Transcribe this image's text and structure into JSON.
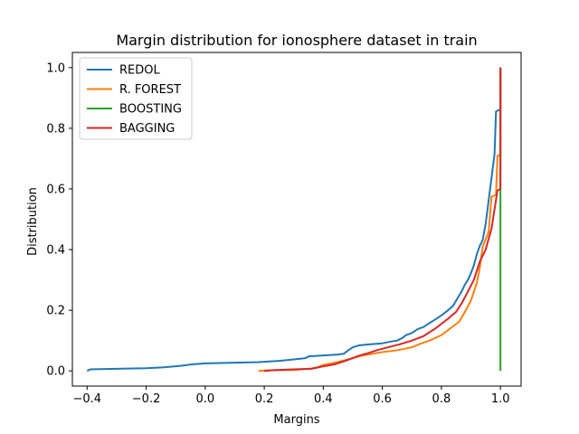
{
  "chart_data": {
    "type": "line",
    "title": "Margin distribution for ionosphere dataset in train",
    "xlabel": "Margins",
    "ylabel": "Distribution",
    "xlim": [
      -0.45,
      1.07
    ],
    "ylim": [
      -0.05,
      1.05
    ],
    "xticks": [
      -0.4,
      -0.2,
      0.0,
      0.2,
      0.4,
      0.6,
      0.8,
      1.0
    ],
    "xtick_labels": [
      "−0.4",
      "−0.2",
      "0.0",
      "0.2",
      "0.4",
      "0.6",
      "0.8",
      "1.0"
    ],
    "yticks": [
      0.0,
      0.2,
      0.4,
      0.6,
      0.8,
      1.0
    ],
    "ytick_labels": [
      "0.0",
      "0.2",
      "0.4",
      "0.6",
      "0.8",
      "1.0"
    ],
    "grid": false,
    "legend_position": "top-left",
    "series": [
      {
        "name": "REDOL",
        "color": "#1f77b4",
        "points": [
          [
            -0.4,
            0.0
          ],
          [
            -0.39,
            0.005
          ],
          [
            -0.3,
            0.007
          ],
          [
            -0.2,
            0.009
          ],
          [
            -0.14,
            0.012
          ],
          [
            -0.08,
            0.017
          ],
          [
            -0.05,
            0.021
          ],
          [
            0.0,
            0.025
          ],
          [
            0.1,
            0.027
          ],
          [
            0.18,
            0.029
          ],
          [
            0.25,
            0.033
          ],
          [
            0.3,
            0.038
          ],
          [
            0.34,
            0.042
          ],
          [
            0.35,
            0.048
          ],
          [
            0.4,
            0.051
          ],
          [
            0.45,
            0.054
          ],
          [
            0.47,
            0.057
          ],
          [
            0.48,
            0.065
          ],
          [
            0.5,
            0.078
          ],
          [
            0.52,
            0.084
          ],
          [
            0.55,
            0.087
          ],
          [
            0.6,
            0.091
          ],
          [
            0.63,
            0.097
          ],
          [
            0.65,
            0.1
          ],
          [
            0.67,
            0.11
          ],
          [
            0.68,
            0.118
          ],
          [
            0.7,
            0.125
          ],
          [
            0.72,
            0.138
          ],
          [
            0.74,
            0.145
          ],
          [
            0.76,
            0.158
          ],
          [
            0.78,
            0.17
          ],
          [
            0.8,
            0.183
          ],
          [
            0.82,
            0.198
          ],
          [
            0.84,
            0.215
          ],
          [
            0.85,
            0.232
          ],
          [
            0.86,
            0.248
          ],
          [
            0.87,
            0.265
          ],
          [
            0.88,
            0.285
          ],
          [
            0.89,
            0.3
          ],
          [
            0.9,
            0.322
          ],
          [
            0.91,
            0.348
          ],
          [
            0.92,
            0.385
          ],
          [
            0.93,
            0.412
          ],
          [
            0.94,
            0.432
          ],
          [
            0.95,
            0.485
          ],
          [
            0.96,
            0.562
          ],
          [
            0.97,
            0.638
          ],
          [
            0.98,
            0.715
          ],
          [
            0.985,
            0.855
          ],
          [
            0.99,
            0.858
          ],
          [
            1.0,
            0.862
          ],
          [
            1.0,
            1.0
          ]
        ]
      },
      {
        "name": "R. FOREST",
        "color": "#ff7f0e",
        "points": [
          [
            0.18,
            0.0
          ],
          [
            0.22,
            0.002
          ],
          [
            0.3,
            0.003
          ],
          [
            0.36,
            0.008
          ],
          [
            0.38,
            0.012
          ],
          [
            0.4,
            0.02
          ],
          [
            0.43,
            0.025
          ],
          [
            0.46,
            0.032
          ],
          [
            0.5,
            0.042
          ],
          [
            0.53,
            0.05
          ],
          [
            0.56,
            0.055
          ],
          [
            0.6,
            0.062
          ],
          [
            0.65,
            0.068
          ],
          [
            0.7,
            0.078
          ],
          [
            0.73,
            0.09
          ],
          [
            0.76,
            0.1
          ],
          [
            0.8,
            0.118
          ],
          [
            0.83,
            0.14
          ],
          [
            0.86,
            0.162
          ],
          [
            0.88,
            0.195
          ],
          [
            0.9,
            0.232
          ],
          [
            0.92,
            0.29
          ],
          [
            0.93,
            0.34
          ],
          [
            0.94,
            0.41
          ],
          [
            0.96,
            0.458
          ],
          [
            0.97,
            0.575
          ],
          [
            0.985,
            0.58
          ],
          [
            0.99,
            0.71
          ],
          [
            1.0,
            0.712
          ],
          [
            1.0,
            1.0
          ]
        ]
      },
      {
        "name": "BOOSTING",
        "color": "#2ca02c",
        "points": [
          [
            1.0,
            0.0
          ],
          [
            1.0,
            1.0
          ]
        ]
      },
      {
        "name": "BAGGING",
        "color": "#d62728",
        "points": [
          [
            0.2,
            0.0
          ],
          [
            0.24,
            0.003
          ],
          [
            0.3,
            0.005
          ],
          [
            0.36,
            0.007
          ],
          [
            0.4,
            0.015
          ],
          [
            0.44,
            0.022
          ],
          [
            0.48,
            0.035
          ],
          [
            0.52,
            0.05
          ],
          [
            0.55,
            0.058
          ],
          [
            0.58,
            0.068
          ],
          [
            0.62,
            0.078
          ],
          [
            0.66,
            0.088
          ],
          [
            0.7,
            0.1
          ],
          [
            0.74,
            0.115
          ],
          [
            0.78,
            0.14
          ],
          [
            0.82,
            0.17
          ],
          [
            0.85,
            0.195
          ],
          [
            0.87,
            0.225
          ],
          [
            0.89,
            0.262
          ],
          [
            0.91,
            0.3
          ],
          [
            0.93,
            0.36
          ],
          [
            0.95,
            0.4
          ],
          [
            0.97,
            0.47
          ],
          [
            0.99,
            0.595
          ],
          [
            1.0,
            0.6
          ],
          [
            1.0,
            1.0
          ]
        ]
      }
    ]
  }
}
